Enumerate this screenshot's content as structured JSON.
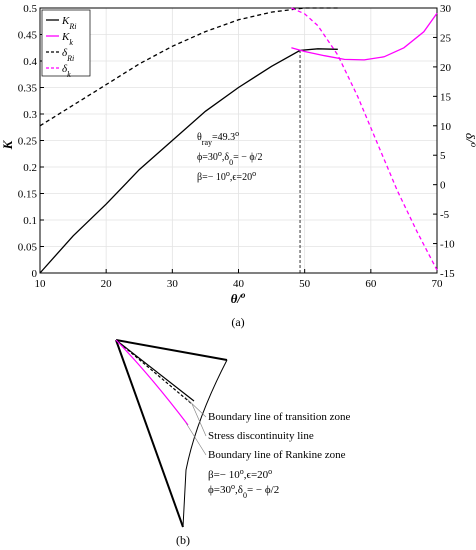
{
  "chart_data": {
    "type": "line",
    "x_label": "θ/",
    "x_label_sup": "o",
    "y_label": "K",
    "y2_label": "δ/",
    "y2_label_sup": "o",
    "panel_label": "(a)",
    "xlim": [
      10,
      70
    ],
    "xticks": [
      10,
      20,
      30,
      40,
      50,
      60,
      70
    ],
    "ylim": [
      0,
      0.5
    ],
    "yticks": [
      0,
      0.05,
      0.1,
      0.15,
      0.2,
      0.25,
      0.3,
      0.35,
      0.4,
      0.45,
      0.5
    ],
    "y2lim": [
      -15,
      30
    ],
    "y2ticks": [
      -15,
      -10,
      -5,
      0,
      5,
      10,
      15,
      20,
      25,
      30
    ],
    "grid": true,
    "legend": "upper left",
    "vline": 49.3,
    "series": [
      {
        "name": "K",
        "name_sub": "Ri",
        "color": "#000000",
        "dashed": false,
        "x": [
          10,
          15,
          20,
          25,
          30,
          35,
          40,
          45,
          49.3,
          52,
          55
        ],
        "values": [
          0,
          0.07,
          0.13,
          0.195,
          0.25,
          0.305,
          0.35,
          0.39,
          0.42,
          0.423,
          0.422
        ]
      },
      {
        "name": "K",
        "name_sub": "k",
        "color": "#ff00ff",
        "dashed": false,
        "x": [
          48,
          50,
          53,
          56,
          59,
          62,
          65,
          68,
          70
        ],
        "values": [
          0.425,
          0.418,
          0.41,
          0.403,
          0.402,
          0.408,
          0.425,
          0.455,
          0.49
        ]
      },
      {
        "name": "δ",
        "name_sub": "Ri",
        "color": "#000000",
        "dashed": true,
        "axis": "y2",
        "x": [
          10,
          15,
          20,
          25,
          30,
          35,
          40,
          45,
          50,
          55
        ],
        "values": [
          10,
          13.5,
          17,
          20.5,
          23.5,
          26,
          28,
          29.3,
          30,
          30
        ]
      },
      {
        "name": "δ",
        "name_sub": "k",
        "color": "#ff00ff",
        "dashed": true,
        "axis": "y2",
        "x": [
          48,
          50,
          52,
          55,
          58,
          61,
          64,
          67,
          70
        ],
        "values": [
          30,
          29,
          27,
          22,
          15,
          7,
          -1,
          -8,
          -14.5
        ]
      }
    ],
    "annotations": [
      [
        {
          "text": "θ"
        },
        {
          "text": "ray",
          "sub": true
        },
        {
          "text": "=49.3"
        },
        {
          "text": "o",
          "sup": true
        }
      ],
      [
        {
          "text": "ϕ=30"
        },
        {
          "text": "o",
          "sup": true
        },
        {
          "text": ",δ"
        },
        {
          "text": "0",
          "sub": true
        },
        {
          "text": "= − ϕ/2"
        }
      ],
      [
        {
          "text": "β=− 10"
        },
        {
          "text": "o",
          "sup": true
        },
        {
          "text": ",ϵ=20"
        },
        {
          "text": "o",
          "sup": true
        }
      ]
    ]
  },
  "diagram": {
    "labels": [
      "Boundary line of transition zone",
      "Stress discontinuity line",
      "Boundary line of Rankine zone"
    ],
    "params": [
      [
        {
          "text": "β=− 10"
        },
        {
          "text": "o",
          "sup": true
        },
        {
          "text": ",ϵ=20"
        },
        {
          "text": "o",
          "sup": true
        }
      ],
      [
        {
          "text": "ϕ=30"
        },
        {
          "text": "o",
          "sup": true
        },
        {
          "text": ",δ"
        },
        {
          "text": "0",
          "sub": true
        },
        {
          "text": "= − ϕ/2"
        }
      ]
    ],
    "panel_label": "(b)"
  }
}
